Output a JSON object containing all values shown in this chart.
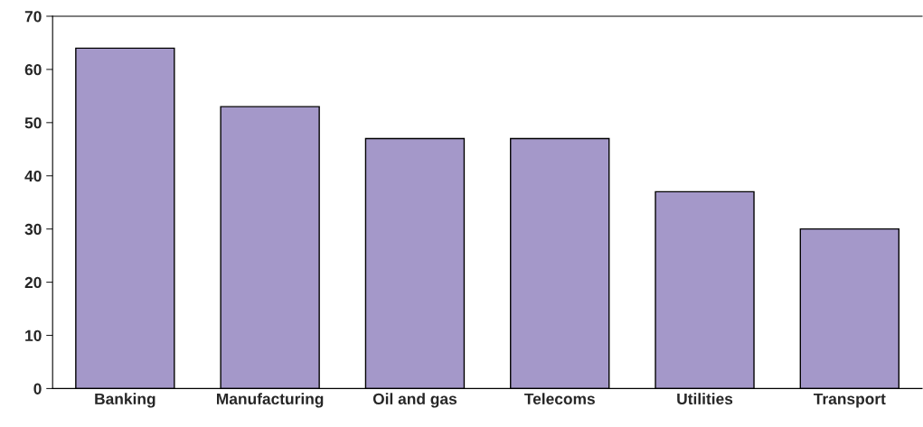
{
  "chart_data": {
    "type": "bar",
    "categories": [
      "Banking",
      "Manufacturing",
      "Oil and gas",
      "Telecoms",
      "Utilities",
      "Transport"
    ],
    "values": [
      64,
      53,
      47,
      47,
      37,
      30
    ],
    "color": "#a498c9",
    "ylim": [
      0,
      70
    ],
    "yticks": [
      0,
      10,
      20,
      30,
      40,
      50,
      60,
      70
    ],
    "grid": false
  }
}
